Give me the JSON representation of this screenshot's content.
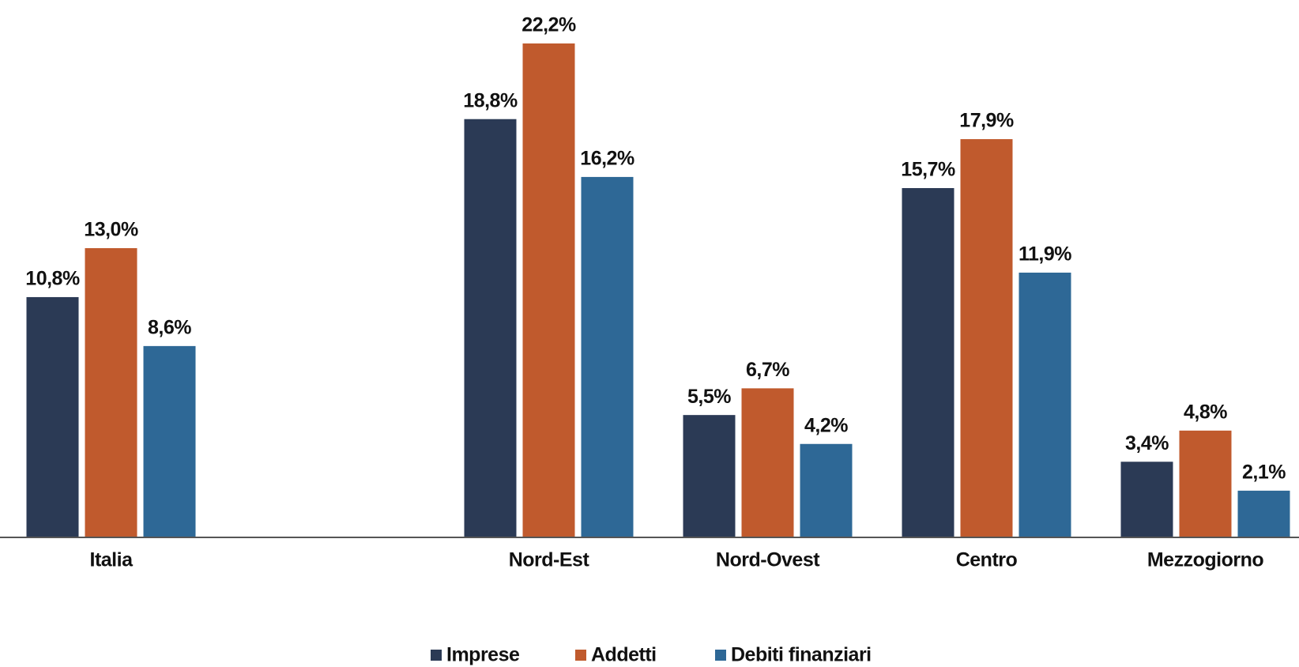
{
  "chart_data": {
    "type": "bar",
    "categories": [
      "Italia",
      null,
      "Nord-Est",
      "Nord-Ovest",
      "Centro",
      "Mezzogiorno"
    ],
    "series": [
      {
        "name": "Imprese",
        "color": "#2b3a55",
        "values": [
          10.8,
          null,
          18.8,
          5.5,
          15.7,
          3.4
        ],
        "value_labels": [
          "10,8%",
          null,
          "18,8%",
          "5,5%",
          "15,7%",
          "3,4%"
        ]
      },
      {
        "name": "Addetti",
        "color": "#c05a2d",
        "values": [
          13.0,
          null,
          22.2,
          6.7,
          17.9,
          4.8
        ],
        "value_labels": [
          "13,0%",
          null,
          "22,2%",
          "6,7%",
          "17,9%",
          "4,8%"
        ]
      },
      {
        "name": "Debiti finanziari",
        "color": "#2e6896",
        "values": [
          8.6,
          null,
          16.2,
          4.2,
          11.9,
          2.1
        ],
        "value_labels": [
          "8,6%",
          null,
          "16,2%",
          "4,2%",
          "11,9%",
          "2,1%"
        ]
      }
    ],
    "legend": "bottom"
  }
}
